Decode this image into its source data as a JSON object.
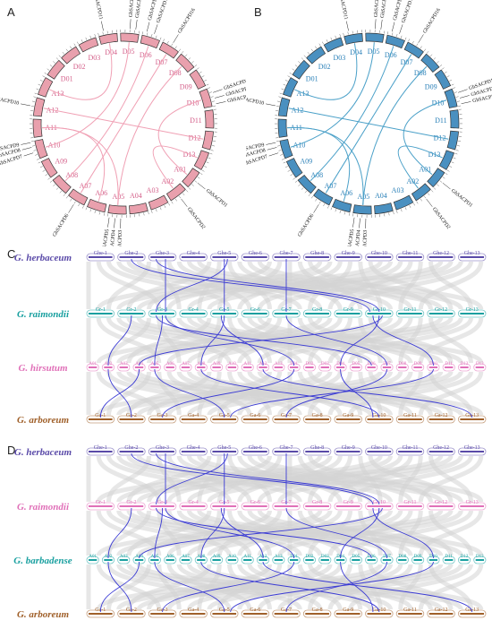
{
  "panels": {
    "A": {
      "letter": "A"
    },
    "B": {
      "letter": "B"
    },
    "C": {
      "letter": "C"
    },
    "D": {
      "letter": "D"
    }
  },
  "colors": {
    "circos_a": "#e9a0ad",
    "circos_a_link": "#f0a0b4",
    "circos_b": "#4a90c0",
    "circos_b_link": "#4aa0c8",
    "gray_band": "#d4d4d4",
    "link_blue": "#3b3bd4",
    "herbaceum": "#5a4aa8",
    "raimondii_c": "#1aa0a0",
    "raimondii_d": "#e070b8",
    "hirsutum": "#e070b8",
    "barbadense": "#1aa0a0",
    "arboreum": "#a0602a"
  },
  "circos": {
    "chromosomes": [
      "A01",
      "A02",
      "A03",
      "A04",
      "A05",
      "A06",
      "A07",
      "A08",
      "A09",
      "A10",
      "A11",
      "A12",
      "A13",
      "D01",
      "D02",
      "D03",
      "D04",
      "D05",
      "D06",
      "D07",
      "D08",
      "D09",
      "D10",
      "D11",
      "D12",
      "D13"
    ],
    "labels": [
      "GhSACPD1",
      "GhSACPD2",
      "GhSACPD3",
      "GhSACPD4",
      "GhSACPD5",
      "GhSACPD6",
      "GhSACPD7",
      "GhSACPD8",
      "GhSACPD9",
      "GhSACPD10",
      "GhSACPD11",
      "GhSACPD12",
      "GhSACPD13",
      "GhSACPD14",
      "GhSACPD15",
      "GhSACPD16",
      "GhSACPD17",
      "GhSACPD18",
      "GhSACPD19"
    ]
  },
  "synteny_c": {
    "rows": [
      {
        "species": "G. herbaceum",
        "color_key": "herbaceum",
        "chroms": [
          "Ghe-1",
          "Ghe-2",
          "Ghe-3",
          "Ghe-4",
          "Ghe-5",
          "Ghe-6",
          "Ghe-7",
          "Ghe-8",
          "Ghe-9",
          "Ghe-10",
          "Ghe-11",
          "Ghe-12",
          "Ghe-13"
        ]
      },
      {
        "species": "G. raimondii",
        "color_key": "raimondii_c",
        "chroms": [
          "Gr-1",
          "Gr-2",
          "Gr-3",
          "Gr-4",
          "Gr-5",
          "Gr-6",
          "Gr-7",
          "Gr-8",
          "Gr-9",
          "Gr-10",
          "Gr-11",
          "Gr-12",
          "Gr-13"
        ]
      },
      {
        "species": "G. hirsutum",
        "color_key": "hirsutum",
        "chroms": [
          "A01",
          "A02",
          "A03",
          "A04",
          "A05",
          "A06",
          "A07",
          "A08",
          "A09",
          "A10",
          "A11",
          "A12",
          "A13",
          "D01",
          "D02",
          "D03",
          "D04",
          "D05",
          "D06",
          "D07",
          "D08",
          "D09",
          "D10",
          "D11",
          "D12",
          "D13"
        ]
      },
      {
        "species": "G. arboreum",
        "color_key": "arboreum",
        "chroms": [
          "Ga-1",
          "Ga-2",
          "Ga-3",
          "Ga-4",
          "Ga-5",
          "Ga-6",
          "Ga-7",
          "Ga-8",
          "Ga-9",
          "Ga-10",
          "Ga-11",
          "Ga-12",
          "Ga-13"
        ]
      }
    ]
  },
  "synteny_d": {
    "rows": [
      {
        "species": "G. herbaceum",
        "color_key": "herbaceum",
        "chroms": [
          "Ghe-1",
          "Ghe-2",
          "Ghe-3",
          "Ghe-4",
          "Ghe-5",
          "Ghe-6",
          "Ghe-7",
          "Ghe-8",
          "Ghe-9",
          "Ghe-10",
          "Ghe-11",
          "Ghe-12",
          "Ghe-13"
        ]
      },
      {
        "species": "G. raimondii",
        "color_key": "raimondii_d",
        "chroms": [
          "Gr-1",
          "Gr-2",
          "Gr-3",
          "Gr-4",
          "Gr-5",
          "Gr-6",
          "Gr-7",
          "Gr-8",
          "Gr-9",
          "Gr-10",
          "Gr-11",
          "Gr-12",
          "Gr-13"
        ]
      },
      {
        "species": "G. barbadense",
        "color_key": "barbadense",
        "chroms": [
          "A01",
          "A02",
          "A03",
          "A04",
          "A05",
          "A06",
          "A07",
          "A08",
          "A09",
          "A10",
          "A11",
          "A12",
          "A13",
          "D01",
          "D02",
          "D03",
          "D04",
          "D05",
          "D06",
          "D07",
          "D08",
          "D09",
          "D10",
          "D11",
          "D12",
          "D13"
        ]
      },
      {
        "species": "G. arboreum",
        "color_key": "arboreum",
        "chroms": [
          "Ga-1",
          "Ga-2",
          "Ga-3",
          "Ga-4",
          "Ga-5",
          "Ga-6",
          "Ga-7",
          "Ga-8",
          "Ga-9",
          "Ga-10",
          "Ga-11",
          "Ga-12",
          "Ga-13"
        ]
      }
    ]
  }
}
